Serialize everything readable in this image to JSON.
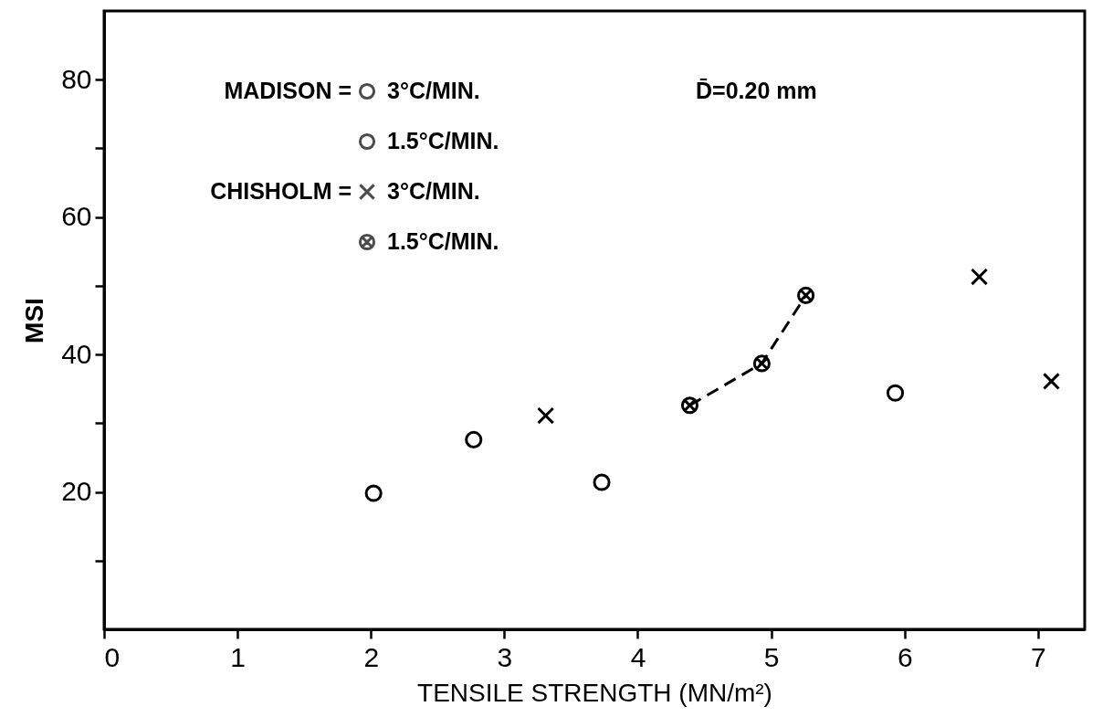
{
  "chart_data": {
    "type": "scatter",
    "xlabel": "TENSILE STRENGTH (MN/m²)",
    "ylabel": "MSI",
    "xlim": [
      0,
      7.35
    ],
    "xticks": [
      0,
      1,
      2,
      3,
      4,
      5,
      6,
      7
    ],
    "ylim": [
      0,
      90
    ],
    "yticks": [
      {
        "value": 10,
        "label": null
      },
      20,
      {
        "value": 30,
        "label": null
      },
      40,
      {
        "value": 50,
        "label": null
      },
      60,
      {
        "value": 70,
        "label": null
      },
      80
    ],
    "grid": false,
    "legend": "top left",
    "annotations": [
      "MADISON =",
      "CHISHOLM =",
      "D̄=0.20 mm"
    ],
    "series": [
      {
        "name": "3°C/MIN.",
        "color": "#000000",
        "marker": "circle",
        "x": [
          2.02,
          2.77,
          3.73,
          5.93
        ],
        "values": [
          19.8,
          27.6,
          21.4,
          34.4
        ]
      },
      {
        "name": "1.5°C/MIN.",
        "color": "#000000",
        "marker": "circle"
      },
      {
        "name": "3°C/MIN.",
        "color": "#000000",
        "marker": "cross",
        "x": [
          3.31,
          6.56,
          7.1
        ],
        "values": [
          31.1,
          51.3,
          36.1
        ]
      },
      {
        "name": "1.5°C/MIN.",
        "type": "line",
        "line_style": "dashed",
        "color": "#000000",
        "marker": "cross",
        "x": [
          4.39,
          4.93,
          5.26
        ],
        "values": [
          32.6,
          38.7,
          48.6
        ]
      }
    ]
  }
}
